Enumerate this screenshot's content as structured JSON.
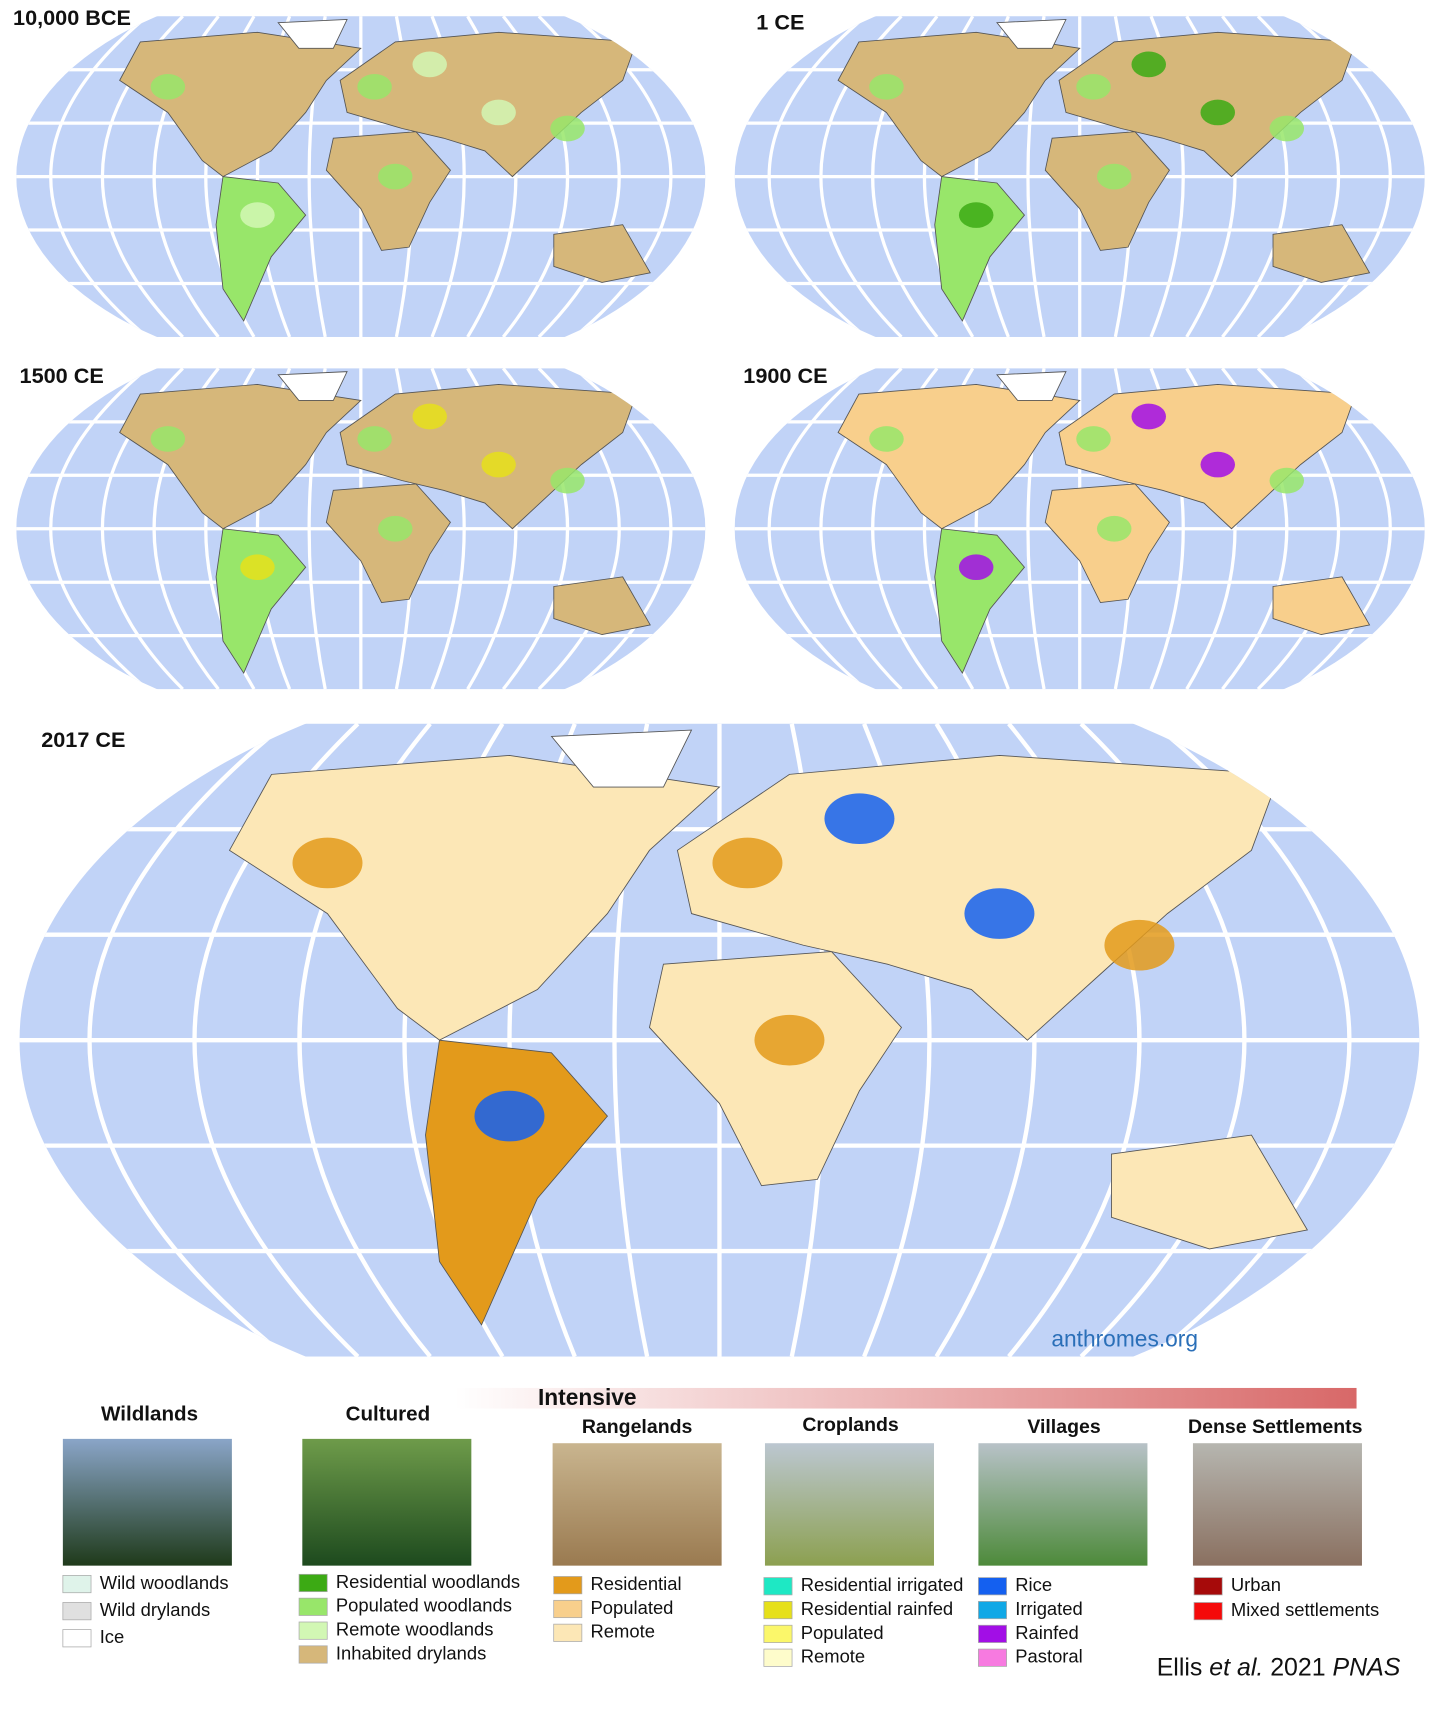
{
  "maps": [
    {
      "label": "10,000 BCE"
    },
    {
      "label": "1 CE"
    },
    {
      "label": "1500 CE"
    },
    {
      "label": "1900 CE"
    },
    {
      "label": "2017 CE"
    }
  ],
  "site": "anthromes.org",
  "intensive": "Intensive",
  "legend": [
    {
      "title": "Wildlands",
      "items": [
        {
          "label": "Wild woodlands",
          "color": "#dff3ea"
        },
        {
          "label": "Wild drylands",
          "color": "#e0e0e0"
        },
        {
          "label": "Ice",
          "color": "#ffffff"
        }
      ]
    },
    {
      "title": "Cultured",
      "items": [
        {
          "label": "Residential woodlands",
          "color": "#3caa14"
        },
        {
          "label": "Populated woodlands",
          "color": "#98e66a"
        },
        {
          "label": "Remote woodlands",
          "color": "#d2f7b4"
        },
        {
          "label": "Inhabited drylands",
          "color": "#d6b77a"
        }
      ]
    },
    {
      "title": "Rangelands",
      "items": [
        {
          "label": "Residential",
          "color": "#e39a1b"
        },
        {
          "label": "Populated",
          "color": "#f8cf8c"
        },
        {
          "label": "Remote",
          "color": "#fce7b6"
        }
      ]
    },
    {
      "title": "Croplands",
      "items": [
        {
          "label": "Residential irrigated",
          "color": "#1ee8c4"
        },
        {
          "label": "Residential rainfed",
          "color": "#e6e01a"
        },
        {
          "label": "Populated",
          "color": "#fbf76a"
        },
        {
          "label": "Remote",
          "color": "#fefccb"
        }
      ]
    },
    {
      "title": "Villages",
      "items": [
        {
          "label": "Rice",
          "color": "#1460f0"
        },
        {
          "label": "Irrigated",
          "color": "#10a8e6"
        },
        {
          "label": "Rainfed",
          "color": "#a20ee6"
        },
        {
          "label": "Pastoral",
          "color": "#f77ae0"
        }
      ]
    },
    {
      "title": "Dense Settlements",
      "items": [
        {
          "label": "Urban",
          "color": "#a60a0a"
        },
        {
          "label": "Mixed settlements",
          "color": "#f50a0a"
        }
      ]
    }
  ],
  "citation": {
    "author": "Ellis",
    "etal": "et al.",
    "year": "2021",
    "journal": "PNAS"
  }
}
